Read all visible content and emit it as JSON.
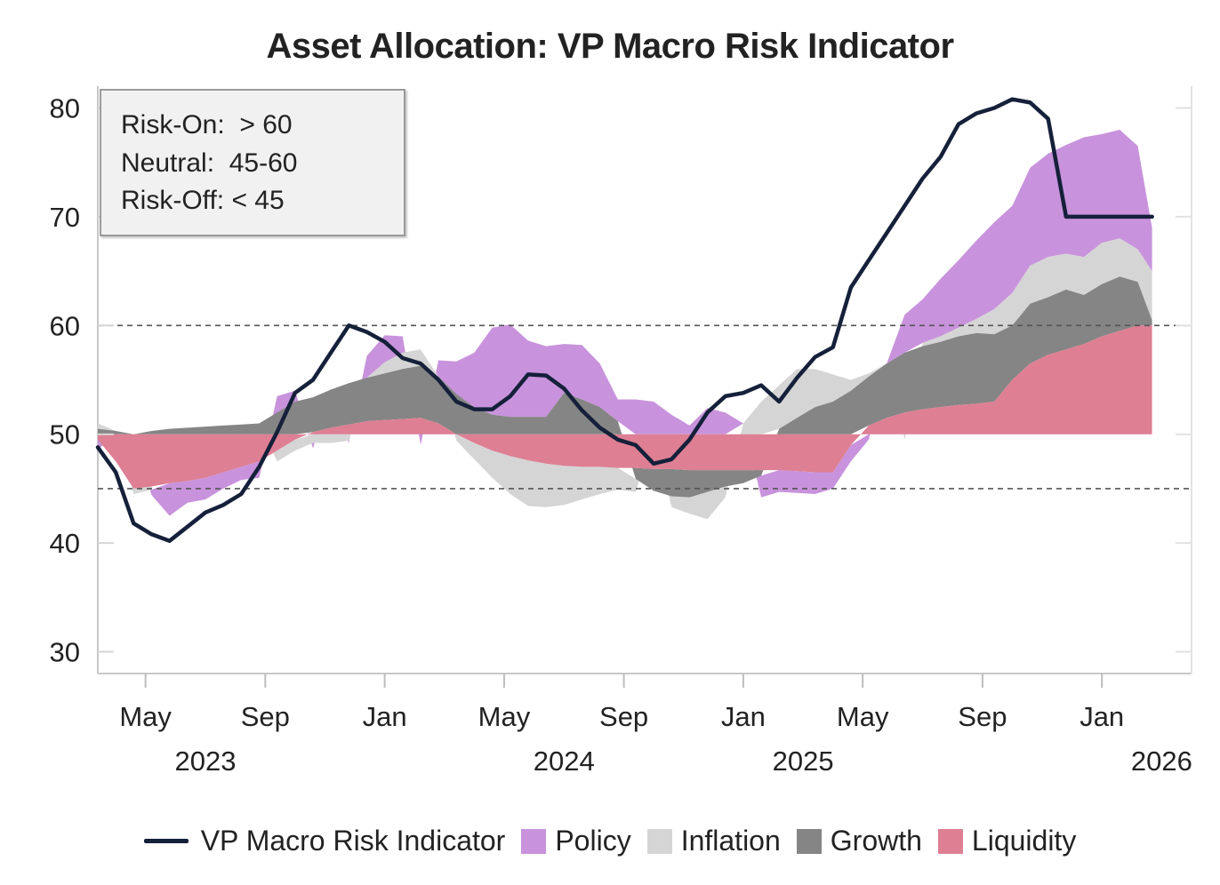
{
  "title": "Asset Allocation: VP Macro Risk Indicator",
  "colors": {
    "indicator": "#15203a",
    "policy": "#c893dc",
    "inflation": "#d5d5d5",
    "growth": "#858585",
    "liquidity": "#de7f93",
    "axis": "#c8c8c8",
    "threshold": "#555555"
  },
  "zones": {
    "risk_on": "Risk-On:  > 60",
    "neutral": "Neutral:  45-60",
    "risk_off": "Risk-Off: < 45"
  },
  "legend": {
    "indicator": "VP Macro Risk Indicator",
    "policy": "Policy",
    "inflation": "Inflation",
    "growth": "Growth",
    "liquidity": "Liquidity"
  },
  "chart_data": {
    "type": "area",
    "title": "Asset Allocation: VP Macro Risk Indicator",
    "baseline": 50,
    "ylim": [
      28,
      82
    ],
    "xlim": [
      2023.2,
      2026.25
    ],
    "yticks": [
      30,
      40,
      50,
      60,
      70,
      80
    ],
    "thresholds": [
      45,
      60
    ],
    "grid": false,
    "legend_position": "bottom",
    "xticks": [
      {
        "x": 2023.333,
        "label": "May"
      },
      {
        "x": 2023.667,
        "label": "Sep"
      },
      {
        "x": 2024.0,
        "label": "Jan"
      },
      {
        "x": 2024.333,
        "label": "May"
      },
      {
        "x": 2024.667,
        "label": "Sep"
      },
      {
        "x": 2025.0,
        "label": "Jan"
      },
      {
        "x": 2025.333,
        "label": "May"
      },
      {
        "x": 2025.667,
        "label": "Sep"
      },
      {
        "x": 2026.0,
        "label": "Jan"
      }
    ],
    "year_labels": [
      {
        "x": 2023.5,
        "label": "2023"
      },
      {
        "x": 2024.5,
        "label": "2024"
      },
      {
        "x": 2025.1667,
        "label": "2025"
      },
      {
        "x": 2026.1667,
        "label": "2026"
      }
    ],
    "x": [
      2023.2,
      2023.25,
      2023.3,
      2023.35,
      2023.4,
      2023.45,
      2023.5,
      2023.55,
      2023.6,
      2023.65,
      2023.7,
      2023.75,
      2023.8,
      2023.85,
      2023.9,
      2023.95,
      2024.0,
      2024.05,
      2024.1,
      2024.15,
      2024.2,
      2024.25,
      2024.3,
      2024.35,
      2024.4,
      2024.45,
      2024.5,
      2024.55,
      2024.6,
      2024.65,
      2024.7,
      2024.75,
      2024.8,
      2024.85,
      2024.9,
      2024.95,
      2025.0,
      2025.05,
      2025.1,
      2025.15,
      2025.2,
      2025.25,
      2025.3,
      2025.35,
      2025.4,
      2025.45,
      2025.5,
      2025.55,
      2025.6,
      2025.65,
      2025.7,
      2025.75,
      2025.8,
      2025.85,
      2025.9,
      2025.95,
      2026.0,
      2026.05,
      2026.1,
      2026.14
    ],
    "series": [
      {
        "name": "Liquidity",
        "values": [
          -0.5,
          -2.5,
          -5,
          -4.8,
          -4.5,
          -4.3,
          -4,
          -3.5,
          -3,
          -2.5,
          -1.5,
          -0.5,
          0.2,
          0.6,
          0.9,
          1.2,
          1.3,
          1.4,
          1.5,
          1,
          0,
          -0.8,
          -1.5,
          -2,
          -2.4,
          -2.7,
          -2.9,
          -3,
          -3,
          -3.1,
          -3.1,
          -3.2,
          -3.2,
          -3.3,
          -3.3,
          -3.3,
          -3.3,
          -3.3,
          -3.3,
          -3.4,
          -3.5,
          -3.5,
          -1,
          0.8,
          1.5,
          2,
          2.3,
          2.5,
          2.7,
          2.8,
          3,
          5,
          6.5,
          7.3,
          7.8,
          8.3,
          9,
          9.5,
          10,
          10
        ]
      },
      {
        "name": "Growth",
        "values": [
          0.5,
          0.3,
          0,
          0.3,
          0.5,
          0.6,
          0.7,
          0.8,
          0.9,
          1,
          2,
          3,
          3.2,
          3.5,
          3.8,
          4,
          4.3,
          4.6,
          4.8,
          4.3,
          3.7,
          2.5,
          1.8,
          1.6,
          1.6,
          1.6,
          3.8,
          3.2,
          2.5,
          1.2,
          -1,
          -2,
          -2.5,
          -2.5,
          -2,
          -1.5,
          -1.2,
          -0.5,
          0.5,
          1.5,
          2.5,
          3,
          4,
          4.5,
          5,
          5.5,
          5.8,
          6,
          6.3,
          6.5,
          6.2,
          5,
          5.5,
          5.3,
          5.5,
          4.5,
          4.8,
          5,
          4,
          0.5
        ]
      },
      {
        "name": "Inflation",
        "values": [
          0.5,
          0,
          -0.5,
          -0.3,
          0,
          0,
          0,
          0,
          0,
          0,
          -1,
          -1,
          -0.8,
          -0.8,
          -0.6,
          0,
          1,
          1.5,
          1.5,
          0,
          -0.6,
          -1.5,
          -2.5,
          -3.5,
          -4.2,
          -4,
          -3.6,
          -3,
          -2.5,
          -2,
          -1.2,
          0,
          -1,
          -1.5,
          -2.5,
          -1,
          1,
          3,
          4,
          4.5,
          3.5,
          2.5,
          1,
          0.3,
          0,
          -0.5,
          0.3,
          0.5,
          0.8,
          1.3,
          2.3,
          3,
          3.5,
          3.7,
          3.3,
          3.5,
          3.8,
          3.5,
          3,
          4.5
        ]
      },
      {
        "name": "Policy",
        "values": [
          -1,
          0,
          0,
          -0.5,
          -3,
          -2,
          -2,
          -1.5,
          -1.2,
          -1.5,
          1.5,
          1,
          -0.5,
          0.1,
          -0.2,
          2,
          2.5,
          1.5,
          -1,
          1.5,
          3,
          5,
          8,
          8.5,
          7,
          6.5,
          4.5,
          5,
          4,
          2,
          3.2,
          3,
          1.8,
          0.8,
          2.4,
          2,
          0,
          -2,
          -2,
          -2,
          -2,
          -1.5,
          -1.5,
          -0.5,
          0,
          3.5,
          4,
          5.3,
          6.2,
          7.2,
          8,
          8,
          9,
          9.5,
          10,
          11,
          10,
          10,
          9.5,
          4
        ]
      }
    ],
    "indicator": {
      "name": "VP Macro Risk Indicator",
      "values": [
        48.8,
        46.5,
        41.8,
        40.8,
        40.2,
        41.5,
        42.8,
        43.5,
        44.5,
        47,
        50.2,
        53.8,
        55,
        57.5,
        60,
        59.4,
        58.5,
        57,
        56.5,
        55,
        53,
        52.3,
        52.3,
        53.5,
        55.5,
        55.4,
        54.2,
        52.2,
        50.6,
        49.5,
        49,
        47.3,
        47.7,
        49.5,
        52,
        53.5,
        53.8,
        54.5,
        53,
        55.2,
        57.1,
        58,
        63.5,
        66,
        68.5,
        71,
        73.5,
        75.5,
        78.5,
        79.5,
        80,
        80.8,
        80.5,
        79,
        70,
        70,
        70,
        70,
        70,
        70
      ]
    }
  }
}
